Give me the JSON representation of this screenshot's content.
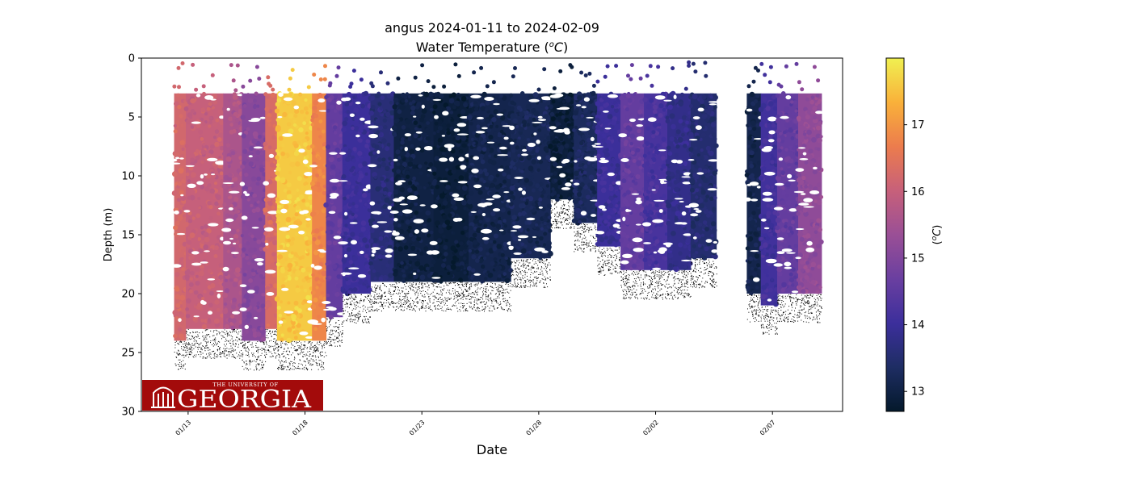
{
  "chart_data": {
    "type": "heatmap",
    "title": "angus 2024-01-11 to 2024-02-09",
    "subtitle_prefix": "Water Temperature (",
    "subtitle_unit_sup": "o",
    "subtitle_unit": "C",
    "subtitle_suffix": ")",
    "xlabel": "Date",
    "ylabel": "Depth (m)",
    "colorbar_label_prefix": "(",
    "colorbar_label_sup": "o",
    "colorbar_label_unit": "C",
    "colorbar_label_suffix": ")",
    "x_range": [
      "2024-01-11",
      "2024-02-10"
    ],
    "ylim": [
      30,
      0
    ],
    "y_inverted": true,
    "colorbar_range": [
      12.7,
      18.0
    ],
    "colormap": "thermal",
    "colormap_stops": [
      "#04192b",
      "#1e2d63",
      "#3c2f9c",
      "#6a3fa0",
      "#9a4f96",
      "#c7607a",
      "#ec7c4d",
      "#f9b13a",
      "#f0f051"
    ],
    "x_ticks": [
      "01/13",
      "01/18",
      "01/23",
      "01/28",
      "02/02",
      "02/07"
    ],
    "x_tick_dates": [
      "2024-01-13",
      "2024-01-18",
      "2024-01-23",
      "2024-01-28",
      "2024-02-02",
      "2024-02-07"
    ],
    "y_ticks": [
      "0",
      "5",
      "10",
      "15",
      "20",
      "25",
      "30"
    ],
    "y_tick_values": [
      0,
      5,
      10,
      15,
      20,
      25,
      30
    ],
    "colorbar_ticks": [
      "13",
      "14",
      "15",
      "16",
      "17"
    ],
    "colorbar_tick_values": [
      13,
      14,
      15,
      16,
      17
    ],
    "profiles": [
      {
        "start": "2024-01-12.4",
        "end": "2024-01-12.9",
        "temp": 16.2,
        "max_depth": 24
      },
      {
        "start": "2024-01-12.9",
        "end": "2024-01-14.5",
        "temp": 16.0,
        "max_depth": 23
      },
      {
        "start": "2024-01-14.5",
        "end": "2024-01-15.3",
        "temp": 15.6,
        "max_depth": 23
      },
      {
        "start": "2024-01-15.3",
        "end": "2024-01-16.3",
        "temp": 15.1,
        "max_depth": 24
      },
      {
        "start": "2024-01-16.3",
        "end": "2024-01-16.8",
        "temp": 16.3,
        "max_depth": 23
      },
      {
        "start": "2024-01-16.8",
        "end": "2024-01-18.3",
        "temp": 17.6,
        "max_depth": 24
      },
      {
        "start": "2024-01-18.3",
        "end": "2024-01-18.9",
        "temp": 16.8,
        "max_depth": 24
      },
      {
        "start": "2024-01-18.9",
        "end": "2024-01-19.6",
        "temp": 14.6,
        "max_depth": 22
      },
      {
        "start": "2024-01-19.6",
        "end": "2024-01-20.8",
        "temp": 14.0,
        "max_depth": 20
      },
      {
        "start": "2024-01-20.8",
        "end": "2024-01-21.8",
        "temp": 13.6,
        "max_depth": 19
      },
      {
        "start": "2024-01-21.8",
        "end": "2024-01-23.5",
        "temp": 13.0,
        "max_depth": 19
      },
      {
        "start": "2024-01-23.5",
        "end": "2024-01-25.0",
        "temp": 12.9,
        "max_depth": 19
      },
      {
        "start": "2024-01-25.0",
        "end": "2024-01-26.8",
        "temp": 13.1,
        "max_depth": 19
      },
      {
        "start": "2024-01-26.8",
        "end": "2024-01-28.5",
        "temp": 13.2,
        "max_depth": 17
      },
      {
        "start": "2024-01-28.5",
        "end": "2024-01-29.5",
        "temp": 12.9,
        "max_depth": 12
      },
      {
        "start": "2024-01-29.5",
        "end": "2024-01-30.5",
        "temp": 13.3,
        "max_depth": 14
      },
      {
        "start": "2024-01-30.5",
        "end": "2024-01-31.5",
        "temp": 14.0,
        "max_depth": 16
      },
      {
        "start": "2024-01-31.5",
        "end": "2024-02-01.5",
        "temp": 14.6,
        "max_depth": 18
      },
      {
        "start": "2024-02-01.5",
        "end": "2024-02-02.5",
        "temp": 14.2,
        "max_depth": 18
      },
      {
        "start": "2024-02-02.5",
        "end": "2024-02-03.5",
        "temp": 13.8,
        "max_depth": 18
      },
      {
        "start": "2024-02-03.5",
        "end": "2024-02-04.6",
        "temp": 13.5,
        "max_depth": 17
      },
      {
        "start": "2024-02-05.9",
        "end": "2024-02-06.5",
        "temp": 13.1,
        "max_depth": 20
      },
      {
        "start": "2024-02-06.5",
        "end": "2024-02-07.2",
        "temp": 14.1,
        "max_depth": 21
      },
      {
        "start": "2024-02-07.2",
        "end": "2024-02-08.1",
        "temp": 14.6,
        "max_depth": 20
      },
      {
        "start": "2024-02-08.1",
        "end": "2024-02-09.1",
        "temp": 15.2,
        "max_depth": 20
      }
    ],
    "surface_layer_top_depth": 3
  },
  "logo": {
    "line1": "THE UNIVERSITY OF",
    "line2": "GEORGIA",
    "icon": "arch-icon",
    "bg_color": "#a30b0b",
    "text_color": "#ffffff"
  }
}
